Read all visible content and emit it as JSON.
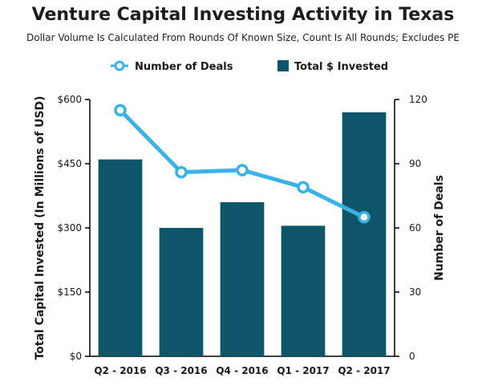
{
  "chart_data": {
    "type": "bar",
    "title": "Venture Capital Investing Activity in Texas",
    "subtitle": "Dollar Volume Is Calculated From Rounds Of Known Size, Count Is All Rounds; Excludes PE",
    "categories": [
      "Q2 - 2016",
      "Q3 - 2016",
      "Q4 - 2016",
      "Q1 - 2017",
      "Q2 - 2017"
    ],
    "series": [
      {
        "name": "Total $ Invested",
        "type": "bar",
        "axis": "left",
        "color": "#0d5568",
        "values": [
          460,
          300,
          360,
          305,
          570
        ]
      },
      {
        "name": "Number of Deals",
        "type": "line",
        "axis": "right",
        "color": "#36b4e9",
        "values": [
          115,
          86,
          87,
          79,
          65
        ]
      }
    ],
    "ylabel": "Total Capital Invested (In Millions of USD)",
    "ylabel_right": "Number of Deals",
    "ylim": [
      0,
      600
    ],
    "ylim_right": [
      0,
      120
    ],
    "yticks": [
      "$0",
      "$150",
      "$300",
      "$450",
      "$600"
    ],
    "yticks_right": [
      "0",
      "30",
      "60",
      "90",
      "120"
    ],
    "legend_position": "top",
    "grid": false
  }
}
